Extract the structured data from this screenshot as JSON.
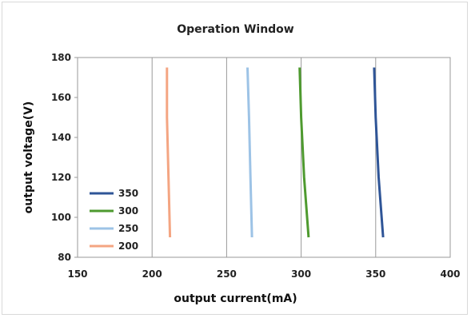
{
  "chart_data": {
    "type": "line",
    "title": "Operation Window",
    "xlabel": "output current(mA)",
    "ylabel": "output voltage(V)",
    "xlim": [
      150,
      400
    ],
    "ylim": [
      80,
      180
    ],
    "xticks": [
      150,
      200,
      250,
      300,
      350,
      400
    ],
    "yticks": [
      80,
      100,
      120,
      140,
      160,
      180
    ],
    "grid": "vertical",
    "legend": "bottom-left",
    "series": [
      {
        "name": "350",
        "color": "#2f5597",
        "x": [
          349,
          350,
          352,
          355
        ],
        "y": [
          175,
          150,
          120,
          90
        ]
      },
      {
        "name": "300",
        "color": "#4e9a2f",
        "x": [
          299,
          300,
          302,
          305
        ],
        "y": [
          175,
          150,
          120,
          90
        ]
      },
      {
        "name": "250",
        "color": "#9dc3e6",
        "x": [
          264,
          265,
          266,
          267
        ],
        "y": [
          175,
          150,
          120,
          90
        ]
      },
      {
        "name": "200",
        "color": "#f4a582",
        "x": [
          210,
          210,
          211,
          212
        ],
        "y": [
          175,
          150,
          120,
          90
        ]
      }
    ]
  }
}
